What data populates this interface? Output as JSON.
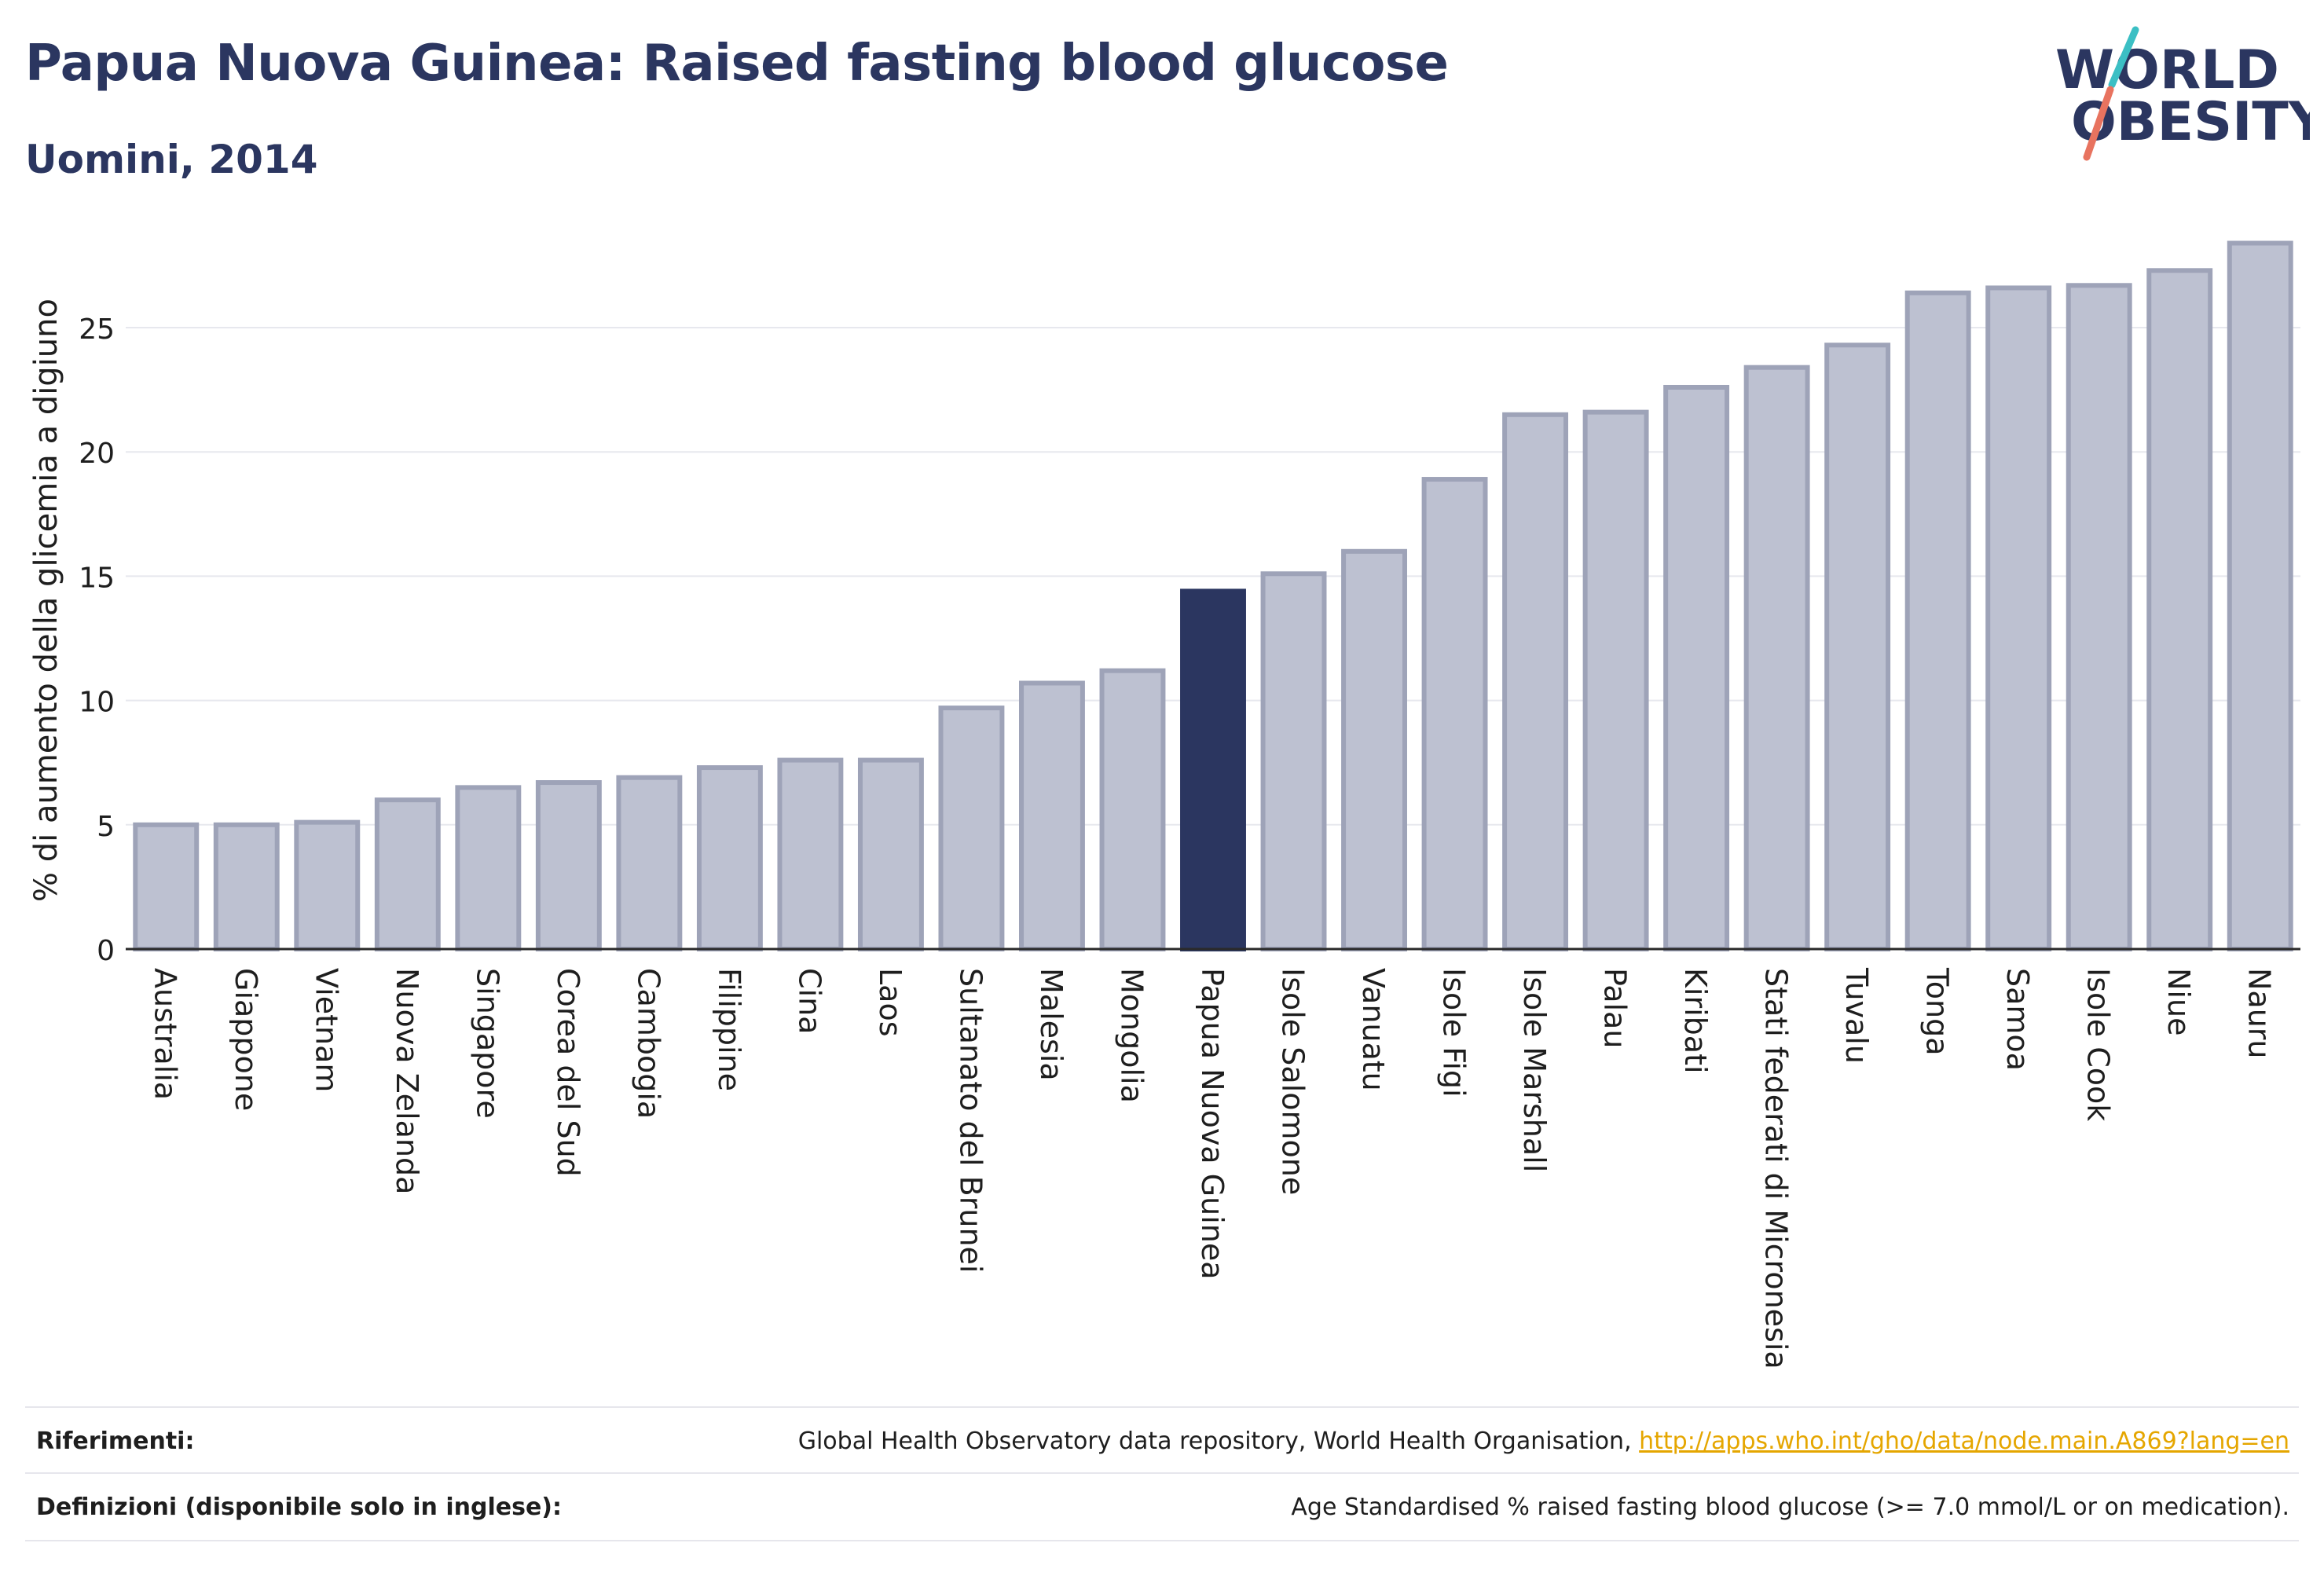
{
  "header": {
    "title": "Papua Nuova Guinea: Raised fasting blood glucose",
    "subtitle": "Uomini, 2014"
  },
  "logo": {
    "line1": "WORLD",
    "line2": "OBESITY",
    "accent_teal": "#3bbfc4",
    "accent_coral": "#e8735f",
    "text_color": "#2b3660"
  },
  "chart_data": {
    "type": "bar",
    "ylabel": "% di aumento della glicemia a digiuno",
    "ylim": [
      0,
      28.7
    ],
    "yticks": [
      0,
      5,
      10,
      15,
      20,
      25
    ],
    "grid": true,
    "highlight": "Papua Nuova Guinea",
    "colors": {
      "bar": "#bdc1d1",
      "bar_edge": "#9ea3b8",
      "highlight": "#2b3660"
    },
    "categories": [
      "Australia",
      "Giappone",
      "Vietnam",
      "Nuova Zelanda",
      "Singapore",
      "Corea del Sud",
      "Cambogia",
      "Filippine",
      "Cina",
      "Laos",
      "Sultanato del Brunei",
      "Malesia",
      "Mongolia",
      "Papua Nuova Guinea",
      "Isole Salomone",
      "Vanuatu",
      "Isole Figi",
      "Isole Marshall",
      "Palau",
      "Kiribati",
      "Stati federati di Micronesia",
      "Tuvalu",
      "Tonga",
      "Samoa",
      "Isole Cook",
      "Niue",
      "Nauru"
    ],
    "values": [
      5.0,
      5.0,
      5.1,
      6.0,
      6.5,
      6.7,
      6.9,
      7.3,
      7.6,
      7.6,
      9.7,
      10.7,
      11.2,
      14.4,
      15.1,
      16.0,
      18.9,
      21.5,
      21.6,
      22.6,
      23.4,
      24.3,
      26.4,
      26.6,
      26.7,
      27.3,
      28.4
    ]
  },
  "footer": {
    "references_label": "Riferimenti:",
    "references_text": "Global Health Observatory data repository, World Health Organisation, ",
    "references_link": "http://apps.who.int/gho/data/node.main.A869?lang=en",
    "definitions_label": "Definizioni (disponibile solo in inglese):",
    "definitions_text": "Age Standardised % raised fasting blood glucose (>= 7.0 mmol/L or on medication)."
  }
}
